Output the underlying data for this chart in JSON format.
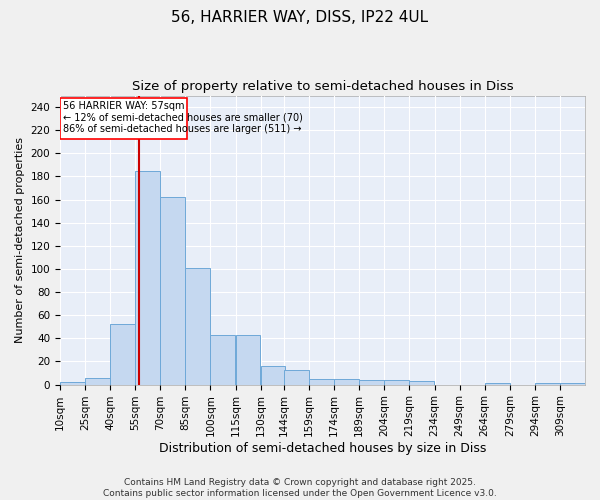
{
  "title": "56, HARRIER WAY, DISS, IP22 4UL",
  "subtitle": "Size of property relative to semi-detached houses in Diss",
  "xlabel": "Distribution of semi-detached houses by size in Diss",
  "ylabel": "Number of semi-detached properties",
  "property_size": 57,
  "property_label": "56 HARRIER WAY: 57sqm",
  "pct_smaller": 12,
  "count_smaller": 70,
  "pct_larger": 86,
  "count_larger": 511,
  "categories": [
    "10sqm",
    "25sqm",
    "40sqm",
    "55sqm",
    "70sqm",
    "85sqm",
    "100sqm",
    "115sqm",
    "130sqm",
    "144sqm",
    "159sqm",
    "174sqm",
    "189sqm",
    "204sqm",
    "219sqm",
    "234sqm",
    "249sqm",
    "264sqm",
    "279sqm",
    "294sqm",
    "309sqm"
  ],
  "bin_edges": [
    10,
    25,
    40,
    55,
    70,
    85,
    100,
    115,
    130,
    144,
    159,
    174,
    189,
    204,
    219,
    234,
    249,
    264,
    279,
    294,
    309
  ],
  "bin_width": 15,
  "values": [
    2,
    6,
    52,
    185,
    162,
    101,
    43,
    43,
    16,
    13,
    5,
    5,
    4,
    4,
    3,
    0,
    0,
    1,
    0,
    1,
    1
  ],
  "bar_color": "#c5d8f0",
  "bar_edge_color": "#6ea8d8",
  "background_color": "#e8eef8",
  "grid_color": "#ffffff",
  "vline_x": 57,
  "vline_color": "#cc0000",
  "ylim": [
    0,
    250
  ],
  "yticks": [
    0,
    20,
    40,
    60,
    80,
    100,
    120,
    140,
    160,
    180,
    200,
    220,
    240
  ],
  "footer_text": "Contains HM Land Registry data © Crown copyright and database right 2025.\nContains public sector information licensed under the Open Government Licence v3.0.",
  "title_fontsize": 11,
  "subtitle_fontsize": 9.5,
  "xlabel_fontsize": 9,
  "ylabel_fontsize": 8,
  "tick_fontsize": 7.5,
  "footer_fontsize": 6.5
}
